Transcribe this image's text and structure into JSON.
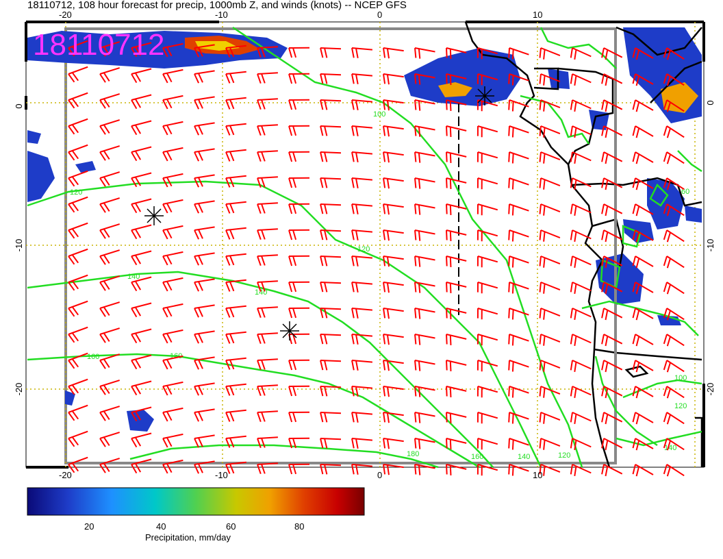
{
  "title": "18110712, 108 hour forecast for precip, 1000mb Z, and winds (knots) -- NCEP GFS",
  "stamp": "18110712",
  "axes": {
    "top_ticks": [
      "-20",
      "-10",
      "0",
      "10"
    ],
    "bottom_ticks": [
      "-20",
      "-10",
      "0",
      "10"
    ],
    "left_ticks": [
      "0",
      "-10",
      "-20"
    ],
    "right_ticks": [
      "0",
      "-10",
      "-20"
    ]
  },
  "colorbar": {
    "label": "Precipitation, mm/day",
    "ticks": [
      "20",
      "40",
      "60",
      "80"
    ],
    "colors": [
      "#0a0a78",
      "#1e3cc8",
      "#1e90ff",
      "#00c8c8",
      "#50d050",
      "#c8c800",
      "#f0a000",
      "#e04000",
      "#c80000",
      "#780000"
    ]
  },
  "contour_color": "#22dd22",
  "wind_color": "#ff0000",
  "coast_color": "#000000",
  "contours": [
    {
      "label": "120"
    },
    {
      "label": "120"
    },
    {
      "label": "140"
    },
    {
      "label": "140"
    },
    {
      "label": "160"
    },
    {
      "label": "160"
    },
    {
      "label": "180"
    },
    {
      "label": "160"
    },
    {
      "label": "140"
    },
    {
      "label": "120"
    },
    {
      "label": "100"
    },
    {
      "label": "100"
    },
    {
      "label": "120"
    },
    {
      "label": "140"
    },
    {
      "label": "60"
    }
  ]
}
